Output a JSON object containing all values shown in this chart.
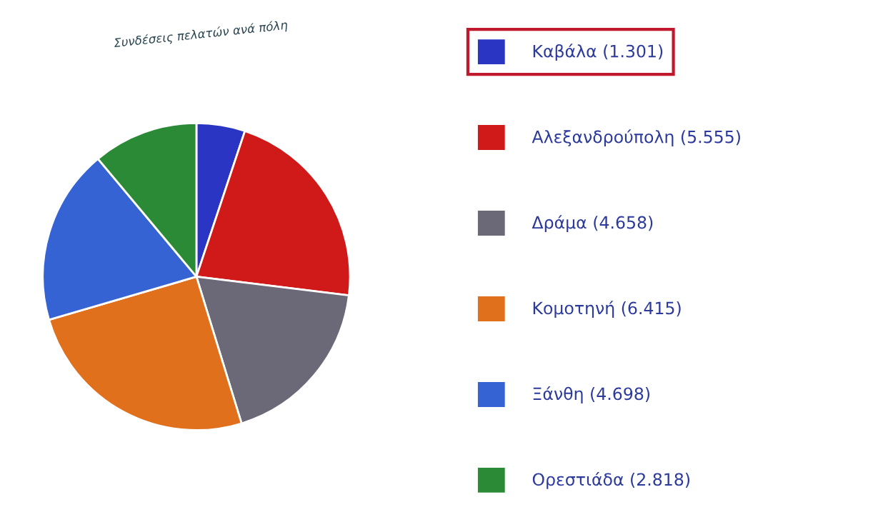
{
  "chart_data": {
    "type": "pie",
    "title": "Συνδέσεις πελατών ανά πόλη",
    "categories": [
      "Καβάλα (1.301)",
      "Αλεξανδρούπολη (5.555)",
      "Δράμα (4.658)",
      "Κομοτηνή (6.415)",
      "Ξάνθη (4.698)",
      "Ορεστιάδα (2.818)"
    ],
    "values": [
      1301,
      5555,
      4658,
      6415,
      4698,
      2818
    ],
    "colors": [
      "#2b35c4",
      "#d01a1a",
      "#6b6878",
      "#e0701c",
      "#3563d4",
      "#2a8a36"
    ],
    "legend": "right"
  }
}
